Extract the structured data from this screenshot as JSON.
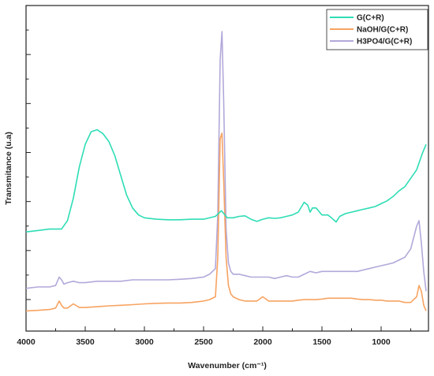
{
  "chart_data": {
    "type": "line",
    "title": "",
    "xlabel": "Wavenumber (cm⁻¹)",
    "ylabel": "Transmitance (u.a)",
    "xlim": [
      4000,
      600
    ],
    "x_reversed": true,
    "ylim": [
      0,
      1
    ],
    "y_ticks_labeled": false,
    "grid": false,
    "legend_position": "top-right",
    "x_ticks": [
      4000,
      3500,
      3000,
      2500,
      2000,
      1500,
      1000
    ],
    "x_tick_labels": [
      "4000",
      "3500",
      "3000",
      "2500",
      "2000",
      "1500",
      "1000"
    ],
    "series": [
      {
        "name": "G(C+R)",
        "color": "#2EDDB5",
        "x": [
          4000,
          3900,
          3800,
          3700,
          3650,
          3600,
          3550,
          3500,
          3450,
          3400,
          3350,
          3300,
          3250,
          3200,
          3150,
          3100,
          3050,
          3000,
          2900,
          2800,
          2700,
          2600,
          2500,
          2400,
          2350,
          2300,
          2250,
          2200,
          2150,
          2100,
          2050,
          2000,
          1950,
          1900,
          1850,
          1800,
          1750,
          1700,
          1650,
          1620,
          1600,
          1580,
          1550,
          1520,
          1500,
          1450,
          1420,
          1380,
          1350,
          1300,
          1250,
          1200,
          1150,
          1100,
          1050,
          1000,
          950,
          900,
          850,
          800,
          750,
          700,
          650,
          620
        ],
        "y": [
          0.29,
          0.295,
          0.3,
          0.3,
          0.33,
          0.41,
          0.52,
          0.6,
          0.645,
          0.652,
          0.638,
          0.61,
          0.56,
          0.49,
          0.42,
          0.375,
          0.35,
          0.34,
          0.335,
          0.333,
          0.333,
          0.335,
          0.335,
          0.345,
          0.365,
          0.34,
          0.34,
          0.345,
          0.347,
          0.335,
          0.327,
          0.335,
          0.34,
          0.338,
          0.34,
          0.345,
          0.35,
          0.36,
          0.395,
          0.385,
          0.36,
          0.375,
          0.375,
          0.36,
          0.35,
          0.35,
          0.34,
          0.325,
          0.345,
          0.355,
          0.36,
          0.365,
          0.37,
          0.375,
          0.38,
          0.39,
          0.4,
          0.415,
          0.435,
          0.45,
          0.48,
          0.51,
          0.57,
          0.6
        ]
      },
      {
        "name": "NaOH/G(C+R)",
        "color": "#F7A361",
        "x": [
          4000,
          3900,
          3800,
          3750,
          3720,
          3700,
          3680,
          3650,
          3600,
          3550,
          3500,
          3400,
          3300,
          3200,
          3100,
          3000,
          2900,
          2800,
          2700,
          2600,
          2500,
          2450,
          2400,
          2380,
          2360,
          2345,
          2330,
          2310,
          2290,
          2270,
          2250,
          2200,
          2150,
          2100,
          2050,
          2000,
          1950,
          1900,
          1850,
          1800,
          1750,
          1700,
          1650,
          1600,
          1550,
          1500,
          1450,
          1400,
          1350,
          1300,
          1250,
          1200,
          1150,
          1100,
          1050,
          1000,
          950,
          900,
          850,
          800,
          750,
          700,
          680,
          660,
          640,
          620
        ],
        "y": [
          0.01,
          0.012,
          0.015,
          0.02,
          0.045,
          0.03,
          0.02,
          0.02,
          0.035,
          0.022,
          0.022,
          0.025,
          0.028,
          0.03,
          0.032,
          0.035,
          0.037,
          0.038,
          0.038,
          0.04,
          0.045,
          0.05,
          0.06,
          0.2,
          0.62,
          0.64,
          0.47,
          0.2,
          0.1,
          0.07,
          0.06,
          0.05,
          0.045,
          0.045,
          0.045,
          0.06,
          0.045,
          0.045,
          0.045,
          0.045,
          0.045,
          0.048,
          0.05,
          0.05,
          0.05,
          0.052,
          0.055,
          0.055,
          0.055,
          0.055,
          0.055,
          0.052,
          0.05,
          0.05,
          0.048,
          0.048,
          0.045,
          0.045,
          0.045,
          0.04,
          0.04,
          0.06,
          0.1,
          0.08,
          0.03,
          0.01
        ]
      },
      {
        "name": "H3PO4/G(C+R)",
        "color": "#B3A8DA",
        "x": [
          4000,
          3900,
          3800,
          3750,
          3720,
          3700,
          3680,
          3650,
          3600,
          3550,
          3500,
          3400,
          3300,
          3200,
          3100,
          3000,
          2900,
          2800,
          2700,
          2600,
          2500,
          2450,
          2400,
          2380,
          2360,
          2345,
          2330,
          2310,
          2290,
          2270,
          2250,
          2200,
          2150,
          2100,
          2050,
          2000,
          1950,
          1900,
          1850,
          1800,
          1750,
          1700,
          1650,
          1600,
          1550,
          1500,
          1450,
          1400,
          1350,
          1300,
          1250,
          1200,
          1150,
          1100,
          1050,
          1000,
          950,
          900,
          850,
          800,
          750,
          700,
          680,
          660,
          640,
          620
        ],
        "y": [
          0.09,
          0.095,
          0.095,
          0.1,
          0.13,
          0.12,
          0.105,
          0.11,
          0.115,
          0.11,
          0.11,
          0.115,
          0.115,
          0.115,
          0.12,
          0.12,
          0.12,
          0.12,
          0.122,
          0.125,
          0.13,
          0.14,
          0.16,
          0.35,
          0.9,
          1.0,
          0.75,
          0.3,
          0.18,
          0.15,
          0.14,
          0.14,
          0.135,
          0.13,
          0.13,
          0.13,
          0.13,
          0.125,
          0.13,
          0.135,
          0.13,
          0.13,
          0.14,
          0.15,
          0.145,
          0.15,
          0.15,
          0.15,
          0.15,
          0.15,
          0.15,
          0.15,
          0.155,
          0.16,
          0.165,
          0.17,
          0.175,
          0.18,
          0.19,
          0.2,
          0.23,
          0.31,
          0.33,
          0.25,
          0.15,
          0.08
        ]
      }
    ]
  }
}
